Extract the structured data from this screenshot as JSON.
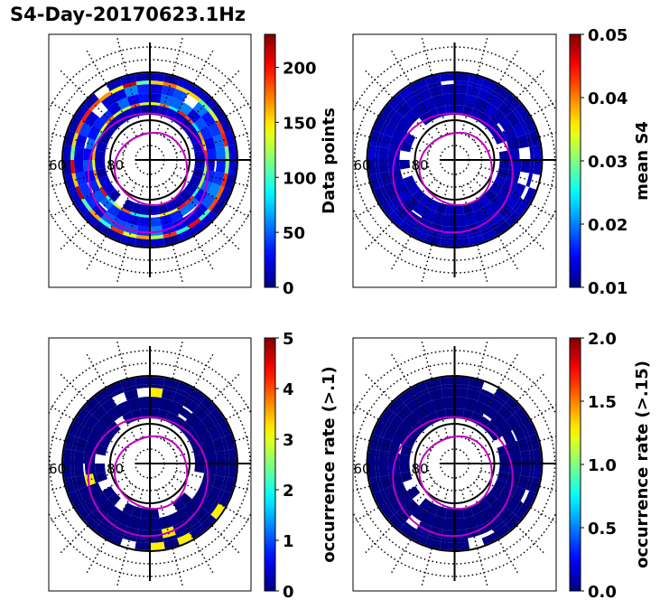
{
  "figure": {
    "title": "S4-Day-20170623.1Hz"
  },
  "chart_data": [
    {
      "type": "heatmap",
      "projection": "polar",
      "panel": "top-left",
      "colorbar_label": "Data points",
      "colorbar_ticks": [
        "0",
        "50",
        "100",
        "150",
        "200"
      ],
      "colorbar_tick_values": [
        0,
        50,
        100,
        150,
        200
      ],
      "clim": [
        0,
        230
      ],
      "colormap": "jet",
      "radial_labels": [
        "60",
        "80"
      ],
      "ring_profile": {
        "description": "Counts in annular band between ~55 and ~75 deg latitude, peak near inner and outer ring edges",
        "typical": 60,
        "peak": 230
      }
    },
    {
      "type": "heatmap",
      "projection": "polar",
      "panel": "top-right",
      "colorbar_label": "mean S4",
      "colorbar_ticks": [
        "0.01",
        "0.02",
        "0.03",
        "0.04",
        "0.05"
      ],
      "colorbar_tick_values": [
        0.01,
        0.02,
        0.03,
        0.04,
        0.05
      ],
      "clim": [
        0.01,
        0.05
      ],
      "colormap": "jet",
      "radial_labels": [
        "60",
        "80"
      ],
      "ring_profile": {
        "typical": 0.011,
        "peak": 0.013
      }
    },
    {
      "type": "heatmap",
      "projection": "polar",
      "panel": "bottom-left",
      "colorbar_label": "occurrence rate (>.1)",
      "colorbar_ticks": [
        "0",
        "1",
        "2",
        "3",
        "4",
        "5"
      ],
      "colorbar_tick_values": [
        0,
        1,
        2,
        3,
        4,
        5
      ],
      "clim": [
        0,
        5
      ],
      "colormap": "jet",
      "radial_labels": [
        "60",
        "80"
      ],
      "ring_profile": {
        "typical": 0.0,
        "peak": 3.2
      }
    },
    {
      "type": "heatmap",
      "projection": "polar",
      "panel": "bottom-right",
      "colorbar_label": "occurrence rate (>.15)",
      "colorbar_ticks": [
        "0.0",
        "0.5",
        "1.0",
        "1.5",
        "2.0"
      ],
      "colorbar_tick_values": [
        0.0,
        0.5,
        1.0,
        1.5,
        2.0
      ],
      "clim": [
        0,
        2
      ],
      "colormap": "jet",
      "radial_labels": [
        "60",
        "80"
      ],
      "ring_profile": {
        "typical": 0.0,
        "peak": 0.05
      }
    }
  ],
  "colors": {
    "oval_line": "#c000c0",
    "grid_line": "#000000"
  }
}
